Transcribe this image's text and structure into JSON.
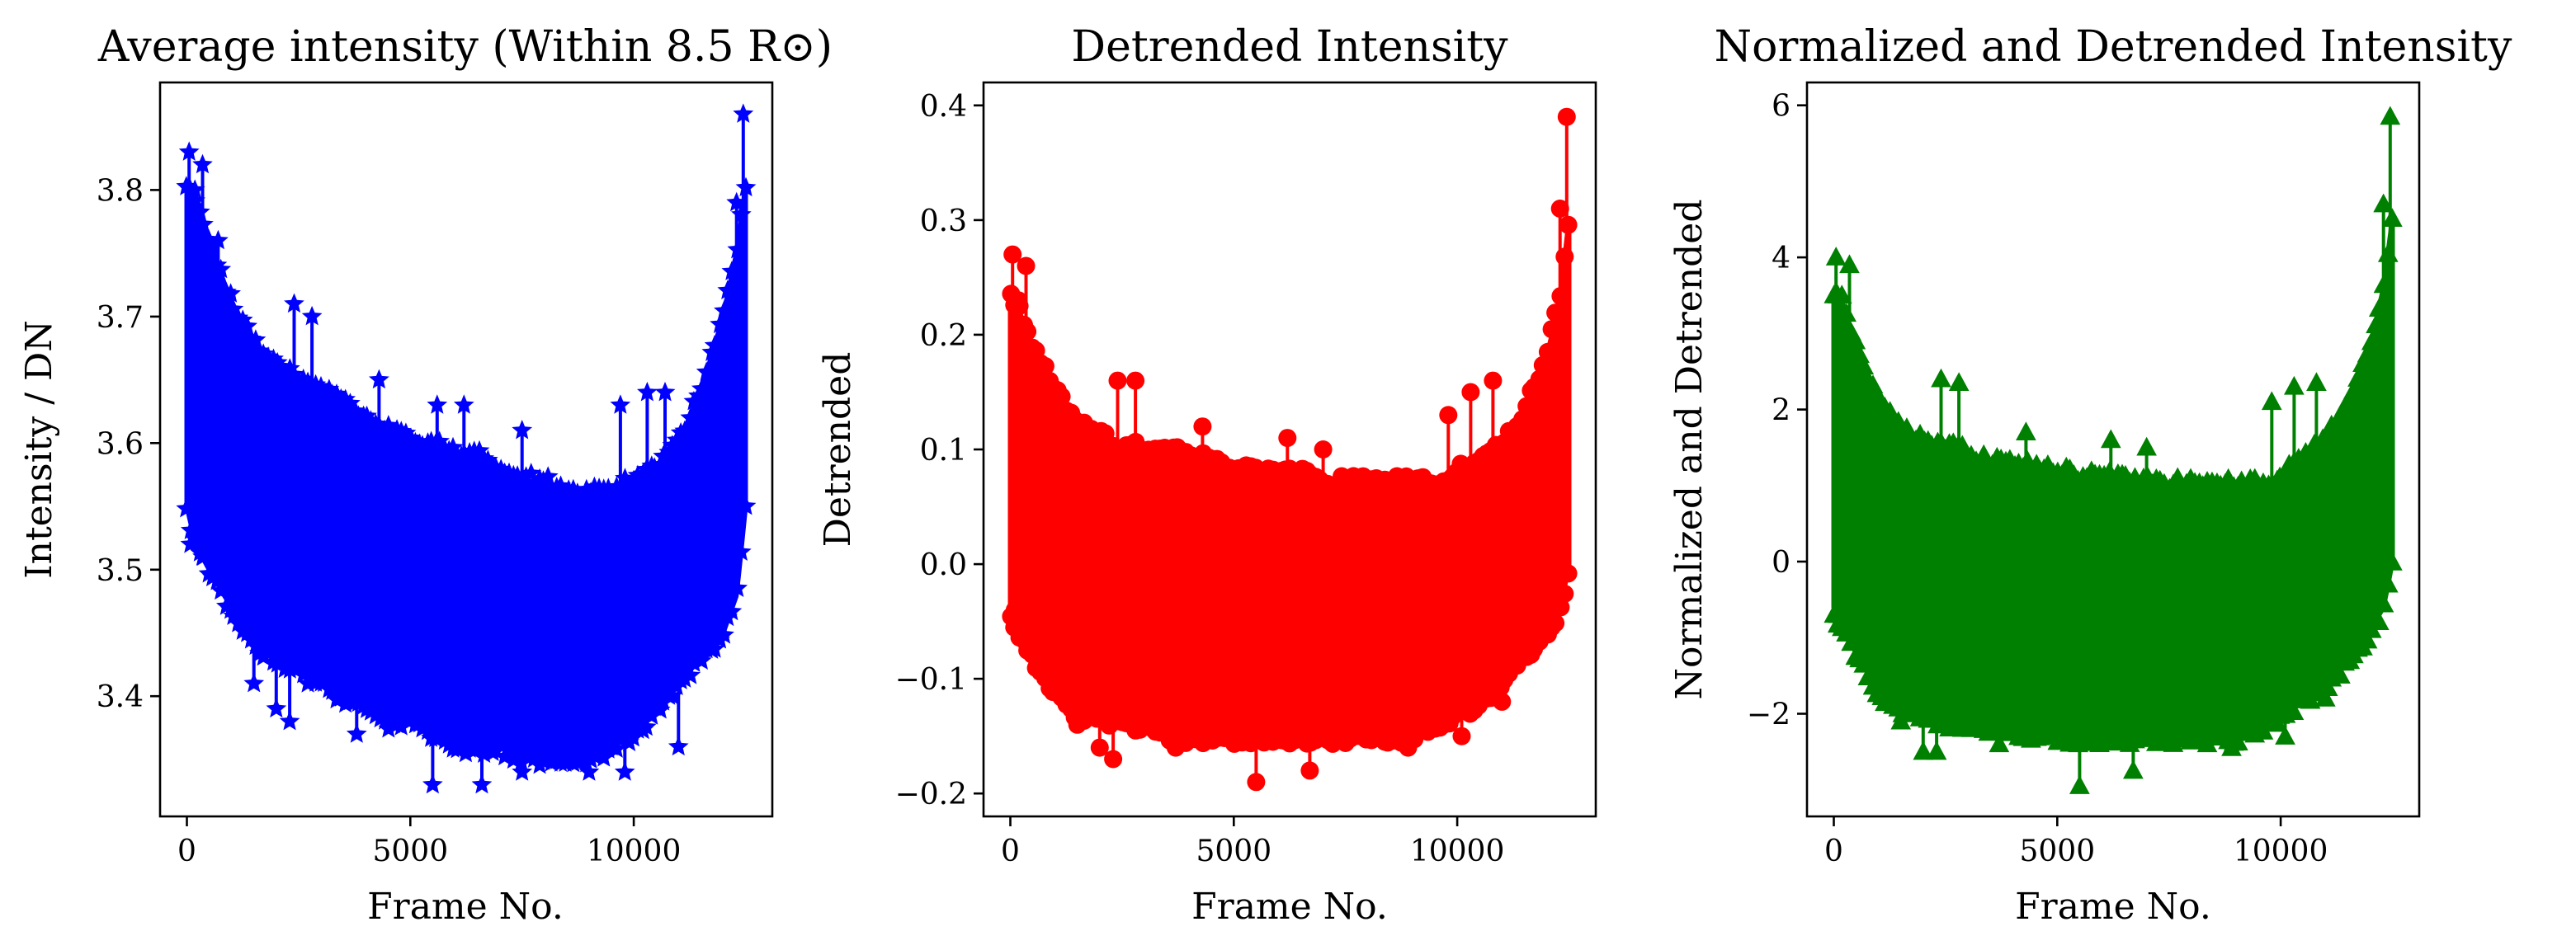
{
  "chart_data": [
    {
      "type": "line",
      "title": "Average intensity (Within 8.5 R⊙)",
      "xlabel": "Frame No.",
      "ylabel": "Intensity / DN",
      "xlim": [
        -600,
        13100
      ],
      "ylim": [
        3.305,
        3.885
      ],
      "xticks": [
        0,
        5000,
        10000
      ],
      "xtick_labels": [
        "0",
        "5000",
        "10000"
      ],
      "yticks": [
        3.4,
        3.5,
        3.6,
        3.7,
        3.8
      ],
      "ytick_labels": [
        "3.4",
        "3.5",
        "3.6",
        "3.7",
        "3.8"
      ],
      "grid": false,
      "legend": false,
      "color": "#0000ff",
      "marker": "star",
      "envelope": {
        "x": [
          0,
          200,
          500,
          1000,
          1500,
          2000,
          2500,
          3000,
          3500,
          4000,
          4500,
          5000,
          5500,
          6000,
          6500,
          7000,
          7500,
          8000,
          8500,
          9000,
          9500,
          10000,
          10500,
          11000,
          11500,
          12000,
          12300,
          12500
        ],
        "upper": [
          3.8,
          3.79,
          3.76,
          3.71,
          3.68,
          3.66,
          3.65,
          3.64,
          3.63,
          3.62,
          3.61,
          3.6,
          3.6,
          3.59,
          3.59,
          3.58,
          3.57,
          3.57,
          3.56,
          3.56,
          3.56,
          3.57,
          3.58,
          3.6,
          3.64,
          3.7,
          3.75,
          3.8
        ],
        "lower": [
          3.55,
          3.52,
          3.5,
          3.47,
          3.44,
          3.43,
          3.42,
          3.41,
          3.4,
          3.39,
          3.38,
          3.38,
          3.37,
          3.36,
          3.36,
          3.36,
          3.35,
          3.35,
          3.35,
          3.35,
          3.36,
          3.37,
          3.39,
          3.41,
          3.43,
          3.45,
          3.48,
          3.55
        ]
      },
      "spikes": [
        {
          "x": 50,
          "y": 3.83
        },
        {
          "x": 350,
          "y": 3.82
        },
        {
          "x": 180,
          "y": 3.8
        },
        {
          "x": 700,
          "y": 3.76
        },
        {
          "x": 2400,
          "y": 3.71
        },
        {
          "x": 2800,
          "y": 3.7
        },
        {
          "x": 4300,
          "y": 3.65
        },
        {
          "x": 5600,
          "y": 3.63
        },
        {
          "x": 6200,
          "y": 3.63
        },
        {
          "x": 7500,
          "y": 3.61
        },
        {
          "x": 9700,
          "y": 3.63
        },
        {
          "x": 10300,
          "y": 3.64
        },
        {
          "x": 10700,
          "y": 3.64
        },
        {
          "x": 12450,
          "y": 3.86
        },
        {
          "x": 12300,
          "y": 3.79
        },
        {
          "x": 80,
          "y": 3.52
        },
        {
          "x": 350,
          "y": 3.51
        },
        {
          "x": 1500,
          "y": 3.41
        },
        {
          "x": 2000,
          "y": 3.39
        },
        {
          "x": 2300,
          "y": 3.38
        },
        {
          "x": 3800,
          "y": 3.37
        },
        {
          "x": 5500,
          "y": 3.33
        },
        {
          "x": 6600,
          "y": 3.33
        },
        {
          "x": 7500,
          "y": 3.34
        },
        {
          "x": 9000,
          "y": 3.34
        },
        {
          "x": 9800,
          "y": 3.34
        },
        {
          "x": 11000,
          "y": 3.36
        }
      ]
    },
    {
      "type": "line",
      "title": "Detrended Intensity",
      "xlabel": "Frame No.",
      "ylabel": "Detrended",
      "xlim": [
        -600,
        13100
      ],
      "ylim": [
        -0.22,
        0.42
      ],
      "xticks": [
        0,
        5000,
        10000
      ],
      "xtick_labels": [
        "0",
        "5000",
        "10000"
      ],
      "yticks": [
        -0.2,
        -0.1,
        0.0,
        0.1,
        0.2,
        0.3,
        0.4
      ],
      "ytick_labels": [
        "−0.2",
        "−0.1",
        "0.0",
        "0.1",
        "0.2",
        "0.3",
        "0.4"
      ],
      "grid": false,
      "legend": false,
      "color": "#ff0000",
      "marker": "circle",
      "envelope": {
        "x": [
          0,
          200,
          500,
          1000,
          1500,
          2000,
          2500,
          3000,
          3500,
          4000,
          4500,
          5000,
          5500,
          6000,
          6500,
          7000,
          7500,
          8000,
          8500,
          9000,
          9500,
          10000,
          10500,
          11000,
          11500,
          12000,
          12300,
          12500
        ],
        "upper": [
          0.23,
          0.22,
          0.19,
          0.15,
          0.12,
          0.11,
          0.1,
          0.1,
          0.1,
          0.09,
          0.09,
          0.08,
          0.08,
          0.08,
          0.08,
          0.07,
          0.07,
          0.07,
          0.07,
          0.07,
          0.07,
          0.08,
          0.09,
          0.1,
          0.13,
          0.18,
          0.23,
          0.3
        ],
        "lower": [
          -0.04,
          -0.06,
          -0.08,
          -0.11,
          -0.13,
          -0.13,
          -0.14,
          -0.14,
          -0.15,
          -0.15,
          -0.15,
          -0.15,
          -0.15,
          -0.15,
          -0.15,
          -0.15,
          -0.15,
          -0.15,
          -0.15,
          -0.15,
          -0.14,
          -0.13,
          -0.12,
          -0.1,
          -0.08,
          -0.06,
          -0.04,
          0.0
        ]
      },
      "spikes": [
        {
          "x": 50,
          "y": 0.27
        },
        {
          "x": 350,
          "y": 0.26
        },
        {
          "x": 180,
          "y": 0.23
        },
        {
          "x": 2400,
          "y": 0.16
        },
        {
          "x": 2800,
          "y": 0.16
        },
        {
          "x": 4300,
          "y": 0.12
        },
        {
          "x": 6200,
          "y": 0.11
        },
        {
          "x": 7000,
          "y": 0.1
        },
        {
          "x": 9800,
          "y": 0.13
        },
        {
          "x": 10300,
          "y": 0.15
        },
        {
          "x": 10800,
          "y": 0.16
        },
        {
          "x": 12450,
          "y": 0.39
        },
        {
          "x": 12300,
          "y": 0.31
        },
        {
          "x": 100,
          "y": -0.04
        },
        {
          "x": 1500,
          "y": -0.14
        },
        {
          "x": 2000,
          "y": -0.16
        },
        {
          "x": 2300,
          "y": -0.17
        },
        {
          "x": 3700,
          "y": -0.16
        },
        {
          "x": 5500,
          "y": -0.19
        },
        {
          "x": 6700,
          "y": -0.18
        },
        {
          "x": 8900,
          "y": -0.16
        },
        {
          "x": 10100,
          "y": -0.15
        },
        {
          "x": 11000,
          "y": -0.12
        }
      ]
    },
    {
      "type": "line",
      "title": "Normalized and Detrended Intensity",
      "xlabel": "Frame No.",
      "ylabel": "Normalized and Detrended",
      "xlim": [
        -600,
        13100
      ],
      "ylim": [
        -3.35,
        6.3
      ],
      "xticks": [
        0,
        5000,
        10000
      ],
      "xtick_labels": [
        "0",
        "5000",
        "10000"
      ],
      "yticks": [
        -2,
        0,
        2,
        4,
        6
      ],
      "ytick_labels": [
        "−2",
        "0",
        "2",
        "4",
        "6"
      ],
      "grid": false,
      "legend": false,
      "color": "#008000",
      "marker": "triangle",
      "envelope": {
        "x": [
          0,
          200,
          500,
          1000,
          1500,
          2000,
          2500,
          3000,
          3500,
          4000,
          4500,
          5000,
          5500,
          6000,
          6500,
          7000,
          7500,
          8000,
          8500,
          9000,
          9500,
          10000,
          10500,
          11000,
          11500,
          12000,
          12300,
          12500
        ],
        "upper": [
          3.5,
          3.3,
          2.8,
          2.1,
          1.7,
          1.6,
          1.5,
          1.4,
          1.3,
          1.3,
          1.2,
          1.2,
          1.1,
          1.1,
          1.1,
          1.0,
          1.0,
          1.0,
          1.0,
          1.0,
          1.0,
          1.1,
          1.3,
          1.6,
          2.0,
          2.8,
          3.6,
          4.5
        ],
        "lower": [
          -0.6,
          -0.9,
          -1.2,
          -1.7,
          -1.9,
          -2.0,
          -2.1,
          -2.1,
          -2.2,
          -2.2,
          -2.3,
          -2.3,
          -2.3,
          -2.3,
          -2.3,
          -2.3,
          -2.3,
          -2.3,
          -2.3,
          -2.3,
          -2.2,
          -2.0,
          -1.8,
          -1.6,
          -1.3,
          -0.9,
          -0.6,
          0.0
        ]
      },
      "spikes": [
        {
          "x": 50,
          "y": 4.0
        },
        {
          "x": 350,
          "y": 3.9
        },
        {
          "x": 180,
          "y": 3.5
        },
        {
          "x": 2400,
          "y": 2.4
        },
        {
          "x": 2800,
          "y": 2.35
        },
        {
          "x": 4300,
          "y": 1.7
        },
        {
          "x": 6200,
          "y": 1.6
        },
        {
          "x": 7000,
          "y": 1.5
        },
        {
          "x": 9800,
          "y": 2.1
        },
        {
          "x": 10300,
          "y": 2.3
        },
        {
          "x": 10800,
          "y": 2.35
        },
        {
          "x": 12450,
          "y": 5.85
        },
        {
          "x": 12300,
          "y": 4.7
        },
        {
          "x": 100,
          "y": -0.7
        },
        {
          "x": 1500,
          "y": -2.1
        },
        {
          "x": 2000,
          "y": -2.5
        },
        {
          "x": 2300,
          "y": -2.5
        },
        {
          "x": 3700,
          "y": -2.4
        },
        {
          "x": 5500,
          "y": -2.95
        },
        {
          "x": 6700,
          "y": -2.75
        },
        {
          "x": 8900,
          "y": -2.45
        },
        {
          "x": 10100,
          "y": -2.3
        },
        {
          "x": 11000,
          "y": -1.8
        }
      ]
    }
  ]
}
